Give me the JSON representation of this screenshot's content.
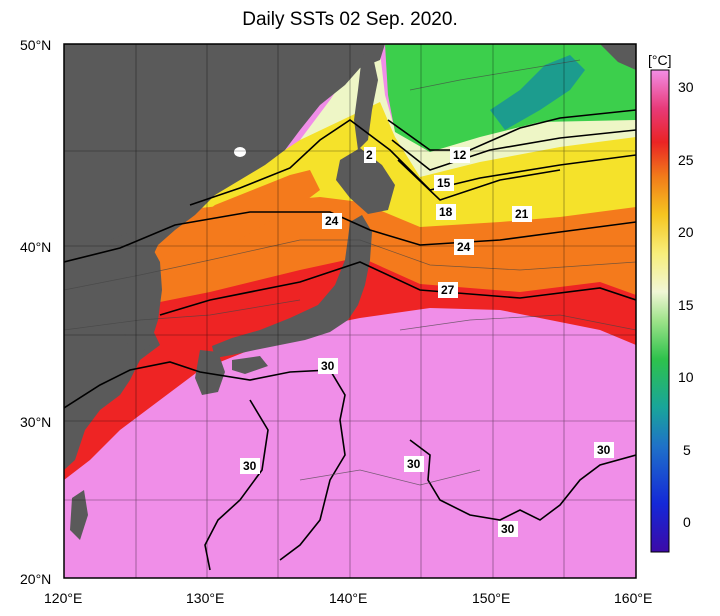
{
  "title": "Daily SSTs 02 Sep. 2020.",
  "axes": {
    "lat_labels": [
      "50°N",
      "40°N",
      "30°N",
      "20°N"
    ],
    "lon_labels": [
      "120°E",
      "130°E",
      "140°E",
      "150°E",
      "160°E"
    ]
  },
  "colorbar": {
    "unit": "[°C]",
    "ticks": [
      "30",
      "25",
      "20",
      "15",
      "10",
      "5",
      "0"
    ]
  },
  "contour_labels": [
    "2",
    "12",
    "15",
    "18",
    "21",
    "24",
    "24",
    "27",
    "30",
    "30",
    "30",
    "30",
    "30"
  ],
  "colors": {
    "land": "#5a5a5a",
    "warm_30": "#f08ee8",
    "red_27": "#ee2020",
    "orange_24": "#f47a1c",
    "yellow_21": "#f5ec28",
    "pale_15": "#eef6c8",
    "green_12": "#3dd14a",
    "teal_5": "#1b9b8f"
  }
}
